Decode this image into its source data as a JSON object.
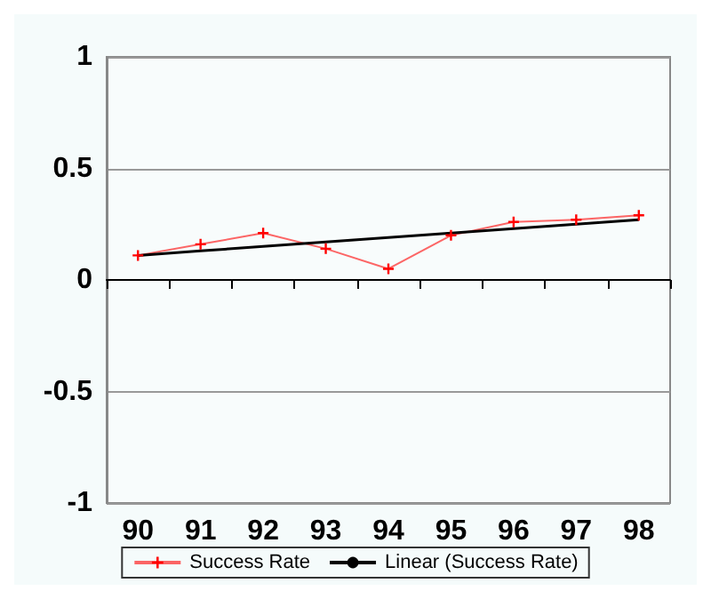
{
  "chart_data": {
    "type": "line",
    "categories": [
      "90",
      "91",
      "92",
      "93",
      "94",
      "95",
      "96",
      "97",
      "98"
    ],
    "series": [
      {
        "name": "Success Rate",
        "color": "#ff0000",
        "values": [
          0.11,
          0.16,
          0.21,
          0.14,
          0.05,
          0.2,
          0.26,
          0.27,
          0.29
        ],
        "marker": "cross"
      },
      {
        "name": "Linear (Success Rate)",
        "color": "#000000",
        "values": [
          0.11,
          0.13,
          0.15,
          0.17,
          0.19,
          0.21,
          0.23,
          0.25,
          0.27
        ],
        "marker": "none"
      }
    ],
    "ylim": [
      -1,
      1
    ],
    "yticks": [
      -1,
      -0.5,
      0,
      0.5,
      1
    ],
    "grid": "y",
    "legend": "bottom"
  }
}
